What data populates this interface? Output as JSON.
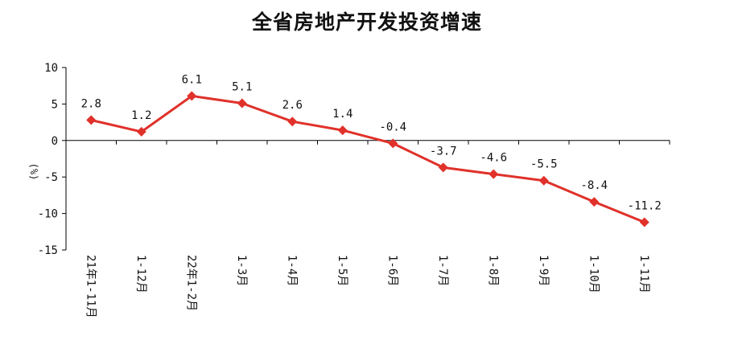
{
  "colors": {
    "series": "#e0312a",
    "axis": "#000000",
    "text": "#111111"
  },
  "chart_data": {
    "type": "line",
    "title": "全省房地产开发投资增速",
    "ylabel": "(%)",
    "xlabel": "",
    "categories": [
      "21年1-11月",
      "1-12月",
      "22年1-2月",
      "1-3月",
      "1-4月",
      "1-5月",
      "1-6月",
      "1-7月",
      "1-8月",
      "1-9月",
      "1-10月",
      "1-11月"
    ],
    "series": [
      {
        "values": [
          2.8,
          1.2,
          6.1,
          5.1,
          2.6,
          1.4,
          -0.4,
          -3.7,
          -4.6,
          -5.5,
          -8.4,
          -11.2
        ]
      }
    ],
    "data_labels": [
      "2.8",
      "1.2",
      "6.1",
      "5.1",
      "2.6",
      "1.4",
      "-0.4",
      "-3.7",
      "-4.6",
      "-5.5",
      "-8.4",
      "-11.2"
    ],
    "ylim": [
      -15,
      10
    ],
    "yticks": [
      10,
      5,
      0,
      -5,
      -10,
      -15
    ],
    "grid": false,
    "marker": "diamond"
  }
}
